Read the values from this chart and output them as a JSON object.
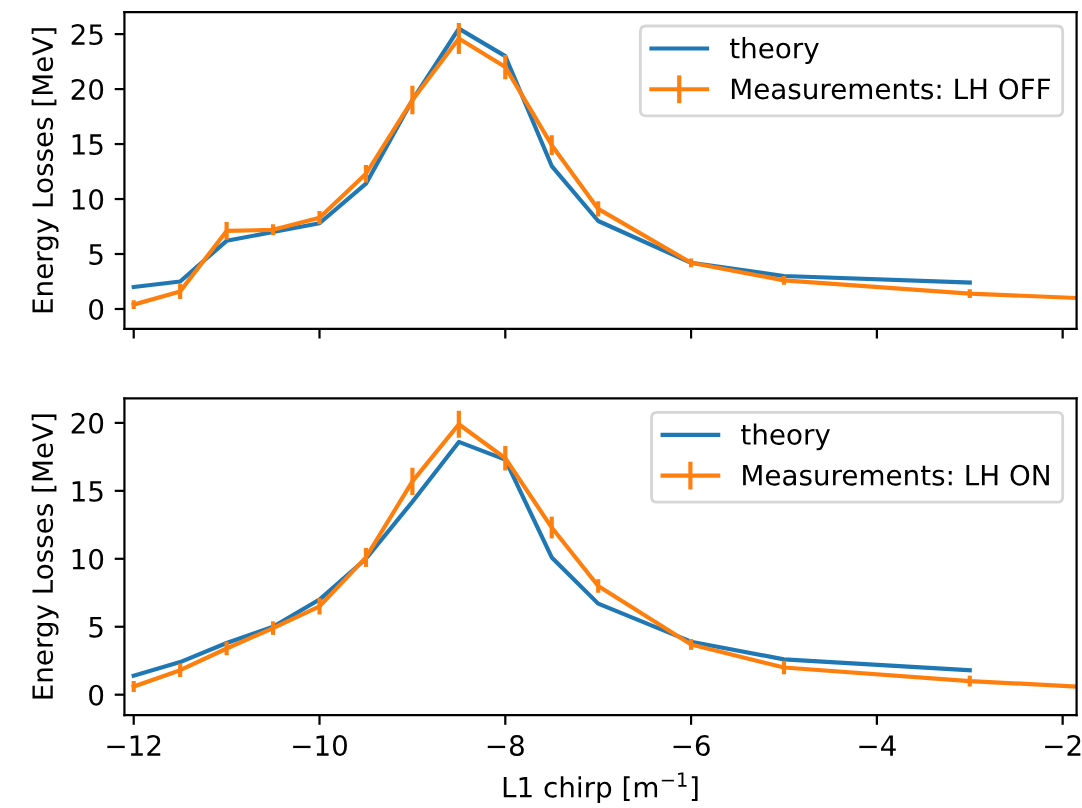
{
  "chart_data": [
    {
      "type": "line",
      "ylabel": "Energy Losses [MeV]",
      "xlim": [
        -12.1,
        -1.85
      ],
      "xticks": [
        {
          "value": -12,
          "label": null
        },
        {
          "value": -10,
          "label": null
        },
        {
          "value": -8,
          "label": null
        },
        {
          "value": -6,
          "label": null
        },
        {
          "value": -4,
          "label": null
        },
        {
          "value": -2,
          "label": null
        }
      ],
      "ylim": [
        -1.8,
        27
      ],
      "yticks": [
        0,
        5,
        10,
        15,
        20,
        25
      ],
      "tick_labels": "y",
      "legend": "top right",
      "grid": false,
      "series": [
        {
          "name": "theory",
          "color": "#1f77b4",
          "x": [
            -12,
            -11.5,
            -11,
            -10.5,
            -10,
            -9.5,
            -9,
            -8.5,
            -8,
            -7.5,
            -7,
            -6,
            -5,
            -3
          ],
          "values": [
            2.0,
            2.5,
            6.2,
            7.0,
            7.8,
            11.4,
            19.0,
            25.5,
            23.0,
            13.0,
            8.0,
            4.2,
            3.0,
            2.4
          ]
        },
        {
          "name": "Measurements: LH OFF",
          "color": "#ff7f0e",
          "x": [
            -12,
            -11.5,
            -11,
            -10.5,
            -10,
            -9.5,
            -9,
            -8.5,
            -8,
            -7.5,
            -7,
            -6,
            -5,
            -3,
            -1.85
          ],
          "values": [
            0.4,
            1.6,
            7.1,
            7.2,
            8.3,
            12.3,
            19.0,
            24.6,
            22.0,
            14.9,
            9.1,
            4.2,
            2.6,
            1.4,
            1.0
          ],
          "errors": [
            0.4,
            0.7,
            0.8,
            0.5,
            0.6,
            0.8,
            1.3,
            1.4,
            1.1,
            0.9,
            0.7,
            0.4,
            0.4,
            0.4,
            null
          ]
        }
      ]
    },
    {
      "type": "line",
      "xlabel": "L1 chirp [m$^{−1}$]",
      "ylabel": "Energy Losses [MeV]",
      "xlim": [
        -12.1,
        -1.85
      ],
      "xticks": [
        {
          "value": -12,
          "label": "−12"
        },
        {
          "value": -10,
          "label": "−10"
        },
        {
          "value": -8,
          "label": "−8"
        },
        {
          "value": -6,
          "label": "−6"
        },
        {
          "value": -4,
          "label": "−4"
        },
        {
          "value": -2,
          "label": "−2"
        }
      ],
      "ylim": [
        -1.5,
        21.8
      ],
      "yticks": [
        0,
        5,
        10,
        15,
        20
      ],
      "legend": "top right",
      "grid": false,
      "series": [
        {
          "name": "theory",
          "color": "#1f77b4",
          "x": [
            -12,
            -11.5,
            -11,
            -10.5,
            -10,
            -9.5,
            -9,
            -8.5,
            -8,
            -7.5,
            -7,
            -6,
            -5,
            -3
          ],
          "values": [
            1.4,
            2.4,
            3.8,
            5.0,
            7.0,
            10.0,
            14.2,
            18.6,
            17.3,
            10.1,
            6.7,
            3.9,
            2.6,
            1.8
          ]
        },
        {
          "name": "Measurements: LH ON",
          "color": "#ff7f0e",
          "x": [
            -12,
            -11.5,
            -11,
            -10.5,
            -10,
            -9.5,
            -9,
            -8.5,
            -8,
            -7.5,
            -7,
            -6,
            -5,
            -3,
            -1.85
          ],
          "values": [
            0.6,
            1.8,
            3.4,
            4.9,
            6.5,
            10.1,
            15.7,
            19.9,
            17.4,
            12.3,
            8.0,
            3.7,
            2.0,
            1.0,
            0.6
          ],
          "errors": [
            0.4,
            0.5,
            0.5,
            0.5,
            0.6,
            0.7,
            1.0,
            1.0,
            0.9,
            0.8,
            0.5,
            0.4,
            0.5,
            0.4,
            null
          ]
        }
      ]
    }
  ]
}
